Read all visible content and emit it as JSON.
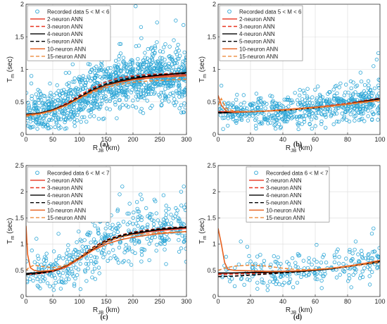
{
  "colors": {
    "recorded": "#2ea6d6",
    "n2": "#e8321e",
    "n3": "#e8321e",
    "n4": "#000000",
    "n5": "#000000",
    "n10": "#e8601e",
    "n15": "#ee8a3c"
  },
  "chart_data": [
    {
      "type": "scatter",
      "panel_label": "(a)",
      "xlabel": "R",
      "xlabel_sub": "JB",
      "xlabel_unit": " (km)",
      "ylabel": "T",
      "ylabel_sub": "m",
      "ylabel_unit": " (sec)",
      "xlim": [
        0,
        300
      ],
      "ylim": [
        0,
        2
      ],
      "xticks": [
        "0",
        "50",
        "100",
        "150",
        "200",
        "250",
        "300"
      ],
      "yticks": [
        "0",
        "0.5",
        "1",
        "1.5",
        "2"
      ],
      "grid": true,
      "legend_position": "top-left",
      "recorded": {
        "name": "Recorded data 5 < M < 6",
        "count": 1100,
        "dist_exp": 0.85,
        "spread": 0.22,
        "seed": 11,
        "extra_points": [
          [
            205,
            1.97
          ],
          [
            215,
            1.65
          ],
          [
            245,
            1.72
          ],
          [
            280,
            1.75
          ],
          [
            10,
            0.9
          ]
        ]
      },
      "series": [
        {
          "name": "2-neuron ANN",
          "style": "n2",
          "x": [
            0,
            25,
            50,
            75,
            100,
            125,
            150,
            175,
            200,
            225,
            250,
            275,
            300
          ],
          "y": [
            0.3,
            0.32,
            0.38,
            0.46,
            0.57,
            0.67,
            0.75,
            0.81,
            0.85,
            0.88,
            0.9,
            0.91,
            0.92
          ]
        },
        {
          "name": "3-neuron ANN",
          "style": "n3",
          "x": [
            0,
            25,
            50,
            75,
            100,
            125,
            150,
            175,
            200,
            225,
            250,
            275,
            300
          ],
          "y": [
            0.3,
            0.32,
            0.38,
            0.48,
            0.6,
            0.72,
            0.81,
            0.87,
            0.9,
            0.92,
            0.93,
            0.94,
            0.95
          ]
        },
        {
          "name": "4-neuron ANN",
          "style": "n4",
          "x": [
            0,
            25,
            50,
            75,
            100,
            125,
            150,
            175,
            200,
            225,
            250,
            275,
            300
          ],
          "y": [
            0.31,
            0.33,
            0.38,
            0.46,
            0.57,
            0.68,
            0.76,
            0.82,
            0.86,
            0.89,
            0.91,
            0.93,
            0.95
          ]
        },
        {
          "name": "5-neuron ANN",
          "style": "n5",
          "x": [
            0,
            25,
            50,
            75,
            100,
            125,
            150,
            175,
            200,
            225,
            250,
            275,
            300
          ],
          "y": [
            0.3,
            0.32,
            0.37,
            0.46,
            0.58,
            0.7,
            0.78,
            0.84,
            0.88,
            0.9,
            0.92,
            0.93,
            0.94
          ]
        },
        {
          "name": "10-neuron ANN",
          "style": "n10",
          "x": [
            0,
            25,
            50,
            75,
            100,
            125,
            150,
            175,
            200,
            225,
            250,
            275,
            300
          ],
          "y": [
            0.3,
            0.32,
            0.37,
            0.45,
            0.56,
            0.67,
            0.75,
            0.8,
            0.84,
            0.86,
            0.88,
            0.89,
            0.9
          ]
        },
        {
          "name": "15-neuron ANN",
          "style": "n15",
          "x": [
            0,
            25,
            50,
            75,
            100,
            125,
            150,
            175,
            200,
            225,
            250,
            275,
            300
          ],
          "y": [
            0.28,
            0.31,
            0.36,
            0.44,
            0.55,
            0.65,
            0.72,
            0.77,
            0.8,
            0.82,
            0.83,
            0.84,
            0.85
          ]
        }
      ]
    },
    {
      "type": "scatter",
      "panel_label": "(b)",
      "xlabel": "R",
      "xlabel_sub": "JB",
      "xlabel_unit": " (km)",
      "ylabel": "T",
      "ylabel_sub": "m",
      "ylabel_unit": " (sec)",
      "xlim": [
        0,
        100
      ],
      "ylim": [
        0,
        2
      ],
      "xticks": [
        "0",
        "20",
        "40",
        "60",
        "80",
        "100"
      ],
      "yticks": [
        "0",
        "0.5",
        "1",
        "1.5",
        "2"
      ],
      "grid": true,
      "legend_position": "top-left",
      "recorded": {
        "name": "Recorded data 5 < M < 6",
        "count": 600,
        "dist_exp": 0.75,
        "spread": 0.16,
        "seed": 23,
        "extra_points": [
          [
            99,
            1.25
          ],
          [
            98,
            1.15
          ],
          [
            96,
            1.05
          ],
          [
            2,
            0.75
          ],
          [
            88,
            0.95
          ]
        ]
      },
      "series": [
        {
          "name": "2-neuron ANN",
          "style": "n2",
          "x": [
            0,
            10,
            20,
            30,
            40,
            50,
            60,
            70,
            80,
            90,
            100
          ],
          "y": [
            0.35,
            0.35,
            0.35,
            0.36,
            0.38,
            0.4,
            0.42,
            0.44,
            0.47,
            0.5,
            0.53
          ]
        },
        {
          "name": "3-neuron ANN",
          "style": "n3",
          "x": [
            0,
            10,
            20,
            30,
            40,
            50,
            60,
            70,
            80,
            90,
            100
          ],
          "y": [
            0.34,
            0.34,
            0.35,
            0.36,
            0.38,
            0.4,
            0.42,
            0.45,
            0.48,
            0.52,
            0.56
          ]
        },
        {
          "name": "4-neuron ANN",
          "style": "n4",
          "x": [
            0,
            10,
            20,
            30,
            40,
            50,
            60,
            70,
            80,
            90,
            100
          ],
          "y": [
            0.33,
            0.34,
            0.35,
            0.36,
            0.37,
            0.39,
            0.41,
            0.44,
            0.47,
            0.51,
            0.55
          ]
        },
        {
          "name": "5-neuron ANN",
          "style": "n5",
          "x": [
            0,
            10,
            20,
            30,
            40,
            50,
            60,
            70,
            80,
            90,
            100
          ],
          "y": [
            0.34,
            0.34,
            0.35,
            0.36,
            0.37,
            0.39,
            0.41,
            0.44,
            0.47,
            0.5,
            0.54
          ]
        },
        {
          "name": "10-neuron ANN",
          "style": "n10",
          "x": [
            0,
            2,
            5,
            10,
            20,
            30,
            40,
            50,
            60,
            70,
            80,
            90,
            100
          ],
          "y": [
            0.6,
            0.45,
            0.36,
            0.34,
            0.35,
            0.36,
            0.38,
            0.4,
            0.42,
            0.44,
            0.47,
            0.5,
            0.53
          ]
        },
        {
          "name": "15-neuron ANN",
          "style": "n15",
          "x": [
            0,
            2,
            5,
            10,
            20,
            30,
            40,
            50,
            60,
            70,
            80,
            90,
            100
          ],
          "y": [
            0.45,
            0.55,
            0.4,
            0.36,
            0.35,
            0.36,
            0.37,
            0.39,
            0.41,
            0.43,
            0.46,
            0.49,
            0.52
          ]
        }
      ]
    },
    {
      "type": "scatter",
      "panel_label": "(c)",
      "xlabel": "R",
      "xlabel_sub": "JB",
      "xlabel_unit": " (km)",
      "ylabel": "T",
      "ylabel_sub": "m",
      "ylabel_unit": " (sec)",
      "xlim": [
        0,
        300
      ],
      "ylim": [
        0,
        2.5
      ],
      "xticks": [
        "0",
        "50",
        "100",
        "150",
        "200",
        "250",
        "300"
      ],
      "yticks": [
        "0",
        "0.5",
        "1",
        "1.5",
        "2",
        "2.5"
      ],
      "grid": true,
      "legend_position": "top-left",
      "recorded": {
        "name": "Recorded data 6 < M < 7",
        "count": 420,
        "dist_exp": 0.95,
        "spread": 0.28,
        "seed": 37,
        "extra_points": [
          [
            180,
            2.1
          ],
          [
            295,
            2.1
          ],
          [
            290,
            2.0
          ],
          [
            175,
            1.95
          ],
          [
            240,
            1.85
          ]
        ]
      },
      "series": [
        {
          "name": "2-neuron ANN",
          "style": "n2",
          "x": [
            0,
            25,
            50,
            75,
            100,
            125,
            150,
            175,
            200,
            225,
            250,
            275,
            300
          ],
          "y": [
            0.42,
            0.44,
            0.48,
            0.56,
            0.72,
            0.9,
            1.04,
            1.13,
            1.19,
            1.23,
            1.26,
            1.28,
            1.3
          ]
        },
        {
          "name": "3-neuron ANN",
          "style": "n3",
          "x": [
            0,
            25,
            50,
            75,
            100,
            125,
            150,
            175,
            200,
            225,
            250,
            275,
            300
          ],
          "y": [
            0.43,
            0.45,
            0.49,
            0.58,
            0.75,
            0.94,
            1.08,
            1.17,
            1.23,
            1.27,
            1.3,
            1.32,
            1.33
          ]
        },
        {
          "name": "4-neuron ANN",
          "style": "n4",
          "x": [
            0,
            25,
            50,
            75,
            100,
            125,
            150,
            175,
            200,
            225,
            250,
            275,
            300
          ],
          "y": [
            0.44,
            0.46,
            0.5,
            0.58,
            0.74,
            0.91,
            1.05,
            1.14,
            1.2,
            1.24,
            1.28,
            1.3,
            1.32
          ]
        },
        {
          "name": "5-neuron ANN",
          "style": "n5",
          "x": [
            0,
            25,
            50,
            75,
            100,
            125,
            150,
            175,
            200,
            225,
            250,
            275,
            300
          ],
          "y": [
            0.42,
            0.44,
            0.48,
            0.57,
            0.74,
            0.93,
            1.07,
            1.16,
            1.22,
            1.26,
            1.29,
            1.31,
            1.33
          ]
        },
        {
          "name": "10-neuron ANN",
          "style": "n10",
          "x": [
            0,
            3,
            8,
            15,
            25,
            50,
            75,
            100,
            125,
            150,
            175,
            200,
            225,
            250,
            275,
            300
          ],
          "y": [
            1.35,
            0.8,
            0.55,
            0.5,
            0.48,
            0.5,
            0.57,
            0.72,
            0.88,
            1.0,
            1.08,
            1.13,
            1.17,
            1.2,
            1.22,
            1.24
          ]
        },
        {
          "name": "15-neuron ANN",
          "style": "n15",
          "x": [
            0,
            5,
            15,
            25,
            50,
            75,
            100,
            125,
            150,
            175,
            200,
            225,
            250,
            275,
            300
          ],
          "y": [
            0.5,
            0.55,
            0.6,
            0.58,
            0.55,
            0.6,
            0.75,
            0.92,
            1.05,
            1.13,
            1.18,
            1.2,
            1.22,
            1.23,
            1.23
          ]
        }
      ]
    },
    {
      "type": "scatter",
      "panel_label": "(d)",
      "xlabel": "R",
      "xlabel_sub": "JB",
      "xlabel_unit": " (km)",
      "ylabel": "T",
      "ylabel_sub": "m",
      "ylabel_unit": " (sec)",
      "xlim": [
        0,
        100
      ],
      "ylim": [
        0,
        2.5
      ],
      "xticks": [
        "0",
        "20",
        "40",
        "60",
        "80",
        "100"
      ],
      "yticks": [
        "0",
        "0.5",
        "1",
        "1.5",
        "2",
        "2.5"
      ],
      "grid": true,
      "legend_position": "top-center",
      "recorded": {
        "name": "Recorded data 6 < M < 7",
        "count": 230,
        "dist_exp": 0.8,
        "spread": 0.2,
        "seed": 51,
        "extra_points": [
          [
            96,
            1.3
          ],
          [
            95,
            1.2
          ],
          [
            85,
            1.05
          ],
          [
            14,
            1.05
          ],
          [
            18,
            0.95
          ]
        ]
      },
      "series": [
        {
          "name": "2-neuron ANN",
          "style": "n2",
          "x": [
            0,
            10,
            20,
            30,
            40,
            50,
            60,
            70,
            80,
            90,
            100
          ],
          "y": [
            0.44,
            0.45,
            0.46,
            0.47,
            0.48,
            0.49,
            0.51,
            0.54,
            0.58,
            0.62,
            0.67
          ]
        },
        {
          "name": "3-neuron ANN",
          "style": "n3",
          "x": [
            0,
            10,
            20,
            30,
            40,
            50,
            60,
            70,
            80,
            90,
            100
          ],
          "y": [
            0.42,
            0.43,
            0.44,
            0.45,
            0.46,
            0.48,
            0.5,
            0.53,
            0.57,
            0.62,
            0.68
          ]
        },
        {
          "name": "4-neuron ANN",
          "style": "n4",
          "x": [
            0,
            10,
            20,
            30,
            40,
            50,
            60,
            70,
            80,
            90,
            100
          ],
          "y": [
            0.45,
            0.45,
            0.46,
            0.46,
            0.47,
            0.48,
            0.5,
            0.53,
            0.57,
            0.62,
            0.67
          ]
        },
        {
          "name": "5-neuron ANN",
          "style": "n5",
          "x": [
            0,
            10,
            20,
            30,
            40,
            50,
            60,
            70,
            80,
            90,
            100
          ],
          "y": [
            0.38,
            0.39,
            0.41,
            0.43,
            0.45,
            0.47,
            0.5,
            0.53,
            0.57,
            0.61,
            0.65
          ]
        },
        {
          "name": "10-neuron ANN",
          "style": "n10",
          "x": [
            0,
            2,
            4,
            6,
            10,
            20,
            30,
            40,
            50,
            60,
            70,
            80,
            90,
            100
          ],
          "y": [
            1.3,
            1.0,
            0.65,
            0.52,
            0.5,
            0.49,
            0.48,
            0.48,
            0.49,
            0.51,
            0.54,
            0.58,
            0.63,
            0.69
          ]
        },
        {
          "name": "15-neuron ANN",
          "style": "n15",
          "x": [
            0,
            5,
            10,
            20,
            30,
            40,
            50,
            60,
            70,
            80,
            90,
            100
          ],
          "y": [
            0.5,
            0.55,
            0.58,
            0.6,
            0.58,
            0.54,
            0.51,
            0.52,
            0.54,
            0.57,
            0.61,
            0.66
          ]
        }
      ]
    }
  ]
}
